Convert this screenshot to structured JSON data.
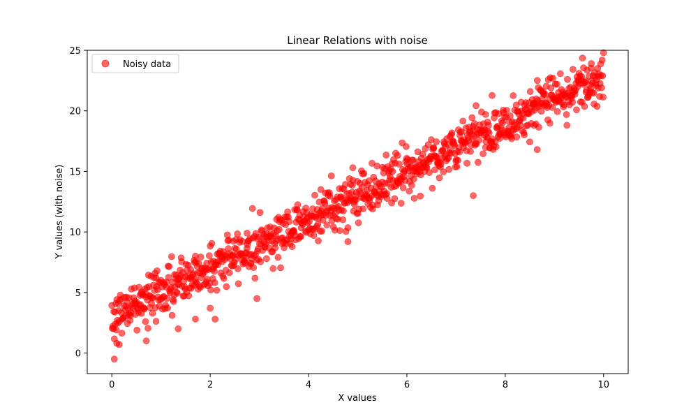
{
  "chart_data": {
    "type": "scatter",
    "title": "Linear Relations with noise",
    "xlabel": "X values",
    "ylabel": "Y values (with noise)",
    "xlim": [
      -0.5,
      10.5
    ],
    "ylim": [
      -1.7,
      25.0
    ],
    "x_ticks": [
      0,
      2,
      4,
      6,
      8,
      10
    ],
    "y_ticks": [
      0,
      5,
      10,
      15,
      20,
      25
    ],
    "grid": false,
    "legend_position": "top-left",
    "series": [
      {
        "name": "Noisy data",
        "color": "#ff0000",
        "opacity": 0.6,
        "marker": "circle",
        "count": 1000,
        "trend": {
          "slope": 2.0,
          "intercept": 3.0,
          "noise_sd": 1.0
        },
        "outliers": [
          [
            0.05,
            -0.5
          ],
          [
            0.1,
            0.8
          ],
          [
            0.15,
            0.7
          ],
          [
            0.7,
            1.0
          ],
          [
            1.35,
            2.0
          ],
          [
            1.7,
            2.8
          ],
          [
            2.0,
            3.7
          ],
          [
            2.1,
            2.8
          ],
          [
            2.95,
            4.5
          ],
          [
            2.75,
            9.9
          ],
          [
            4.25,
            13.5
          ],
          [
            4.9,
            15.3
          ],
          [
            4.8,
            9.2
          ],
          [
            7.35,
            13.0
          ],
          [
            8.65,
            16.8
          ],
          [
            9.75,
            23.9
          ],
          [
            9.5,
            23.1
          ],
          [
            0.9,
            6.2
          ],
          [
            1.7,
            8.0
          ],
          [
            7.6,
            19.7
          ]
        ]
      }
    ]
  }
}
